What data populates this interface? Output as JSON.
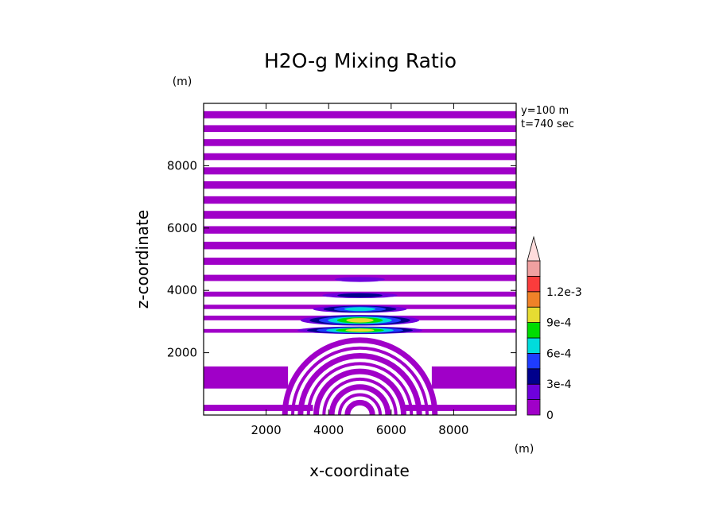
{
  "chart_data": {
    "type": "heatmap",
    "title": "H2O-g Mixing Ratio",
    "xlabel": "x-coordinate",
    "ylabel": "z-coordinate",
    "x_unit": "(m)",
    "y_unit": "(m)",
    "info_lines": [
      "y=100 m",
      "t=740 sec"
    ],
    "xlim": [
      0,
      10000
    ],
    "ylim": [
      0,
      10000
    ],
    "x_ticks": [
      2000,
      4000,
      6000,
      8000
    ],
    "x_tick_labels": [
      "2000",
      "4000",
      "6000",
      "8000"
    ],
    "y_ticks": [
      2000,
      4000,
      6000,
      8000
    ],
    "y_tick_labels": [
      "2000",
      "4000",
      "6000",
      "8000"
    ],
    "grid": false,
    "legend": "colorbar right",
    "colorbar": {
      "levels": [
        0,
        0.00015,
        0.0003,
        0.00045,
        0.0006,
        0.00075,
        0.0009,
        0.00105,
        0.0012,
        0.00135
      ],
      "colors": [
        "#a000c8",
        "#6e00dc",
        "#00008c",
        "#1e3cff",
        "#00dcdc",
        "#00dc00",
        "#e6dc32",
        "#f08228",
        "#fa3c3c",
        "#f0a0a0",
        "#ffdcdc"
      ],
      "tick_labels": [
        "0",
        "3e-4",
        "6e-4",
        "9e-4",
        "1.2e-3"
      ],
      "tick_values": [
        0,
        0.0003,
        0.0006,
        0.0009,
        0.0012
      ]
    },
    "bands": [
      {
        "z": [
          130,
          330
        ],
        "x": [
          0,
          3500
        ],
        "level": 0
      },
      {
        "z": [
          130,
          330
        ],
        "x": [
          6400,
          10000
        ],
        "level": 0
      },
      {
        "z": [
          850,
          1560
        ],
        "x": [
          0,
          2700
        ],
        "level": 0
      },
      {
        "z": [
          850,
          1560
        ],
        "x": [
          7300,
          10000
        ],
        "level": 0
      },
      {
        "z": [
          2640,
          2760
        ],
        "x": [
          0,
          10000
        ],
        "level": 0
      },
      {
        "z": [
          3040,
          3190
        ],
        "x": [
          0,
          10000
        ],
        "level": 0
      },
      {
        "z": [
          3400,
          3540
        ],
        "x": [
          0,
          10000
        ],
        "level": 0
      },
      {
        "z": [
          3800,
          3960
        ],
        "x": [
          0,
          10000
        ],
        "level": 0
      },
      {
        "z": [
          4300,
          4500
        ],
        "x": [
          0,
          10000
        ],
        "level": 0
      },
      {
        "z": [
          4820,
          5050
        ],
        "x": [
          0,
          10000
        ],
        "level": 0
      },
      {
        "z": [
          5320,
          5560
        ],
        "x": [
          0,
          10000
        ],
        "level": 0
      },
      {
        "z": [
          5820,
          6060
        ],
        "x": [
          0,
          10000
        ],
        "level": 0
      },
      {
        "z": [
          6300,
          6550
        ],
        "x": [
          0,
          10000
        ],
        "level": 0
      },
      {
        "z": [
          6780,
          7020
        ],
        "x": [
          0,
          10000
        ],
        "level": 0
      },
      {
        "z": [
          7260,
          7500
        ],
        "x": [
          0,
          10000
        ],
        "level": 0
      },
      {
        "z": [
          7720,
          7950
        ],
        "x": [
          0,
          10000
        ],
        "level": 0
      },
      {
        "z": [
          8180,
          8400
        ],
        "x": [
          0,
          10000
        ],
        "level": 0
      },
      {
        "z": [
          8630,
          8850
        ],
        "x": [
          0,
          10000
        ],
        "level": 0
      },
      {
        "z": [
          9080,
          9300
        ],
        "x": [
          0,
          10000
        ],
        "level": 0
      },
      {
        "z": [
          9520,
          9750
        ],
        "x": [
          0,
          10000
        ],
        "level": 0
      }
    ],
    "blobs": [
      {
        "x": 5000,
        "z": 2720,
        "rx": 2000,
        "rz": 120,
        "levels": [
          1,
          2,
          3,
          4,
          5,
          6
        ]
      },
      {
        "x": 5000,
        "z": 3040,
        "rx": 1900,
        "rz": 170,
        "levels": [
          1,
          2,
          3,
          4,
          5,
          6
        ]
      },
      {
        "x": 5000,
        "z": 3400,
        "rx": 1500,
        "rz": 120,
        "levels": [
          1,
          2,
          3,
          4
        ]
      },
      {
        "x": 5000,
        "z": 3840,
        "rx": 1200,
        "rz": 90,
        "levels": [
          1,
          2
        ]
      },
      {
        "x": 5000,
        "z": 4350,
        "rx": 800,
        "rz": 80,
        "levels": [
          1
        ]
      }
    ],
    "arcs": [
      {
        "x": 5000,
        "z": 0,
        "r": [
          400,
          650,
          900,
          1150,
          1400,
          1650,
          1900,
          2150,
          2400
        ],
        "level": 0
      }
    ]
  }
}
